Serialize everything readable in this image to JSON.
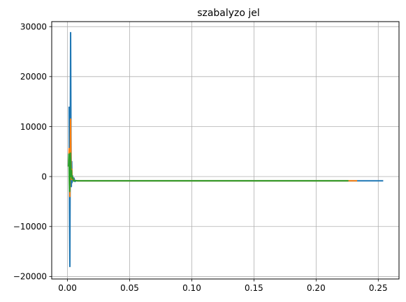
{
  "chart_data": {
    "type": "line",
    "title": "szabalyzo jel",
    "xlabel": "",
    "ylabel": "",
    "xlim": [
      -0.0127,
      0.2667
    ],
    "ylim": [
      -20500,
      31000
    ],
    "grid": true,
    "legend": "none",
    "xticks": [
      0.0,
      0.05,
      0.1,
      0.15,
      0.2,
      0.25
    ],
    "xtick_labels": [
      "0.00",
      "0.05",
      "0.10",
      "0.15",
      "0.20",
      "0.25"
    ],
    "yticks": [
      -20000,
      -10000,
      0,
      10000,
      20000,
      30000
    ],
    "ytick_labels": [
      "−20000",
      "−10000",
      "0",
      "10000",
      "20000",
      "30000"
    ],
    "series": [
      {
        "color": "#1f77b4",
        "x": [
          0.0013,
          0.0016,
          0.0019,
          0.0022,
          0.0025,
          0.0028,
          0.0031,
          0.0034,
          0.0037,
          0.004,
          0.0045,
          0.0052,
          0.006,
          0.007,
          0.0085,
          0.01,
          0.05,
          0.1,
          0.15,
          0.2,
          0.254
        ],
        "y": [
          14000,
          -7000,
          -18000,
          6000,
          28800,
          8000,
          -2000,
          3000,
          -1200,
          200,
          -700,
          -300,
          -1000,
          -800,
          -850,
          -850,
          -850,
          -850,
          -850,
          -850,
          -850
        ]
      },
      {
        "color": "#ff7f0e",
        "x": [
          0.001,
          0.0013,
          0.0016,
          0.0019,
          0.0022,
          0.0025,
          0.0028,
          0.0031,
          0.0034,
          0.0038,
          0.0043,
          0.005,
          0.006,
          0.008,
          0.05,
          0.1,
          0.15,
          0.2,
          0.233
        ],
        "y": [
          3000,
          5600,
          -1500,
          -4000,
          2000,
          11500,
          3000,
          -500,
          1500,
          -600,
          -200,
          -900,
          -800,
          -850,
          -850,
          -850,
          -850,
          -850,
          -850
        ]
      },
      {
        "color": "#2ca02c",
        "x": [
          0.0008,
          0.0011,
          0.0014,
          0.0017,
          0.002,
          0.0023,
          0.0026,
          0.0029,
          0.0032,
          0.0036,
          0.0041,
          0.0048,
          0.0058,
          0.008,
          0.05,
          0.1,
          0.15,
          0.2,
          0.226
        ],
        "y": [
          2000,
          4500,
          -500,
          -3000,
          1000,
          4700,
          2000,
          0,
          1200,
          -400,
          -100,
          -900,
          -800,
          -850,
          -850,
          -850,
          -850,
          -850,
          -850
        ]
      }
    ]
  }
}
